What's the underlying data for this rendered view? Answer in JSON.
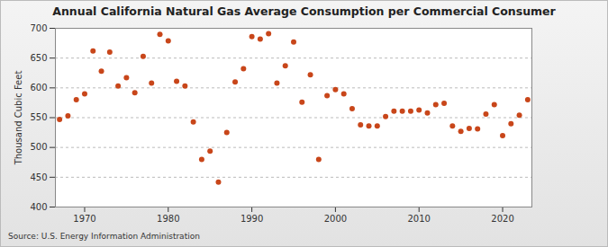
{
  "chart_data": {
    "type": "scatter",
    "title": "Annual California Natural Gas Average Consumption per Commercial Consumer",
    "y_label": "Thousand Cubic Feet",
    "source": "Source: U.S. Energy Information Administration",
    "x": [
      1967,
      1968,
      1969,
      1970,
      1971,
      1972,
      1973,
      1974,
      1975,
      1976,
      1977,
      1978,
      1979,
      1980,
      1981,
      1982,
      1983,
      1984,
      1985,
      1986,
      1987,
      1988,
      1989,
      1990,
      1991,
      1992,
      1993,
      1994,
      1995,
      1996,
      1997,
      1998,
      1999,
      2000,
      2001,
      2002,
      2003,
      2004,
      2005,
      2006,
      2007,
      2008,
      2009,
      2010,
      2011,
      2012,
      2013,
      2014,
      2015,
      2016,
      2017,
      2018,
      2019,
      2020,
      2021,
      2022,
      2023
    ],
    "values": [
      547,
      553,
      580,
      590,
      662,
      628,
      660,
      603,
      617,
      592,
      653,
      608,
      690,
      679,
      611,
      603,
      543,
      480,
      494,
      442,
      525,
      610,
      632,
      686,
      682,
      691,
      608,
      637,
      677,
      576,
      622,
      480,
      587,
      597,
      590,
      565,
      538,
      536,
      536,
      552,
      561,
      561,
      561,
      563,
      558,
      572,
      574,
      536,
      527,
      532,
      531,
      556,
      572,
      520,
      540,
      554,
      580
    ],
    "color": "#c8461a",
    "marker": "circle",
    "xlim": [
      1966.5,
      2023.5
    ],
    "xticks": [
      1970,
      1980,
      1990,
      2000,
      2010,
      2020
    ],
    "ylim": [
      400,
      700
    ],
    "yticks": [
      400,
      450,
      500,
      550,
      600,
      650,
      700
    ],
    "grid": true
  }
}
